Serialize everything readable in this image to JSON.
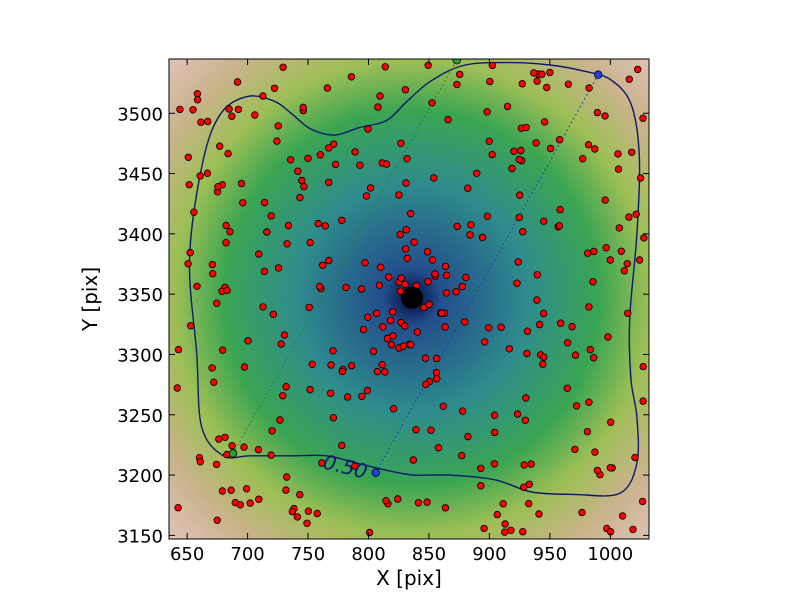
{
  "chart_data": {
    "type": "scatter",
    "title": "",
    "xlabel": "X [pix]",
    "ylabel": "Y [pix]",
    "xlim": [
      635,
      1032
    ],
    "ylim": [
      3147,
      3545
    ],
    "xticks": [
      650,
      700,
      750,
      800,
      850,
      900,
      950,
      1000
    ],
    "yticks": [
      3150,
      3200,
      3250,
      3300,
      3350,
      3400,
      3450,
      3500
    ],
    "xtick_labels": [
      "650",
      "700",
      "750",
      "800",
      "850",
      "900",
      "950",
      "1000"
    ],
    "ytick_labels": [
      "3150",
      "3200",
      "3250",
      "3300",
      "3350",
      "3400",
      "3450",
      "3500"
    ],
    "grid": false,
    "legend": "none",
    "background_map": {
      "kind": "density heatmap",
      "peak": [
        836,
        3347
      ],
      "colors": [
        "#00093f",
        "#234f8c",
        "#2e8c8c",
        "#3aa552",
        "#9dbf55",
        "#c9b38a",
        "#e6c8c8"
      ]
    },
    "center_marker": {
      "x": 836,
      "y": 3347,
      "color": "#000000"
    },
    "contour": {
      "level_label": "0.50",
      "color": "#0b1a6e",
      "points": [
        [
          680,
          3216
        ],
        [
          662,
          3240
        ],
        [
          658,
          3300
        ],
        [
          652,
          3380
        ],
        [
          663,
          3460
        ],
        [
          678,
          3500
        ],
        [
          700,
          3514
        ],
        [
          722,
          3510
        ],
        [
          736,
          3500
        ],
        [
          752,
          3487
        ],
        [
          772,
          3482
        ],
        [
          792,
          3488
        ],
        [
          815,
          3494
        ],
        [
          832,
          3510
        ],
        [
          852,
          3527
        ],
        [
          880,
          3540
        ],
        [
          918,
          3542
        ],
        [
          950,
          3540
        ],
        [
          978,
          3535
        ],
        [
          1000,
          3528
        ],
        [
          1017,
          3508
        ],
        [
          1024,
          3465
        ],
        [
          1022,
          3400
        ],
        [
          1016,
          3330
        ],
        [
          1017,
          3280
        ],
        [
          1022,
          3248
        ],
        [
          1022,
          3210
        ],
        [
          1008,
          3185
        ],
        [
          970,
          3184
        ],
        [
          935,
          3186
        ],
        [
          905,
          3196
        ],
        [
          868,
          3200
        ],
        [
          838,
          3200
        ],
        [
          815,
          3204
        ],
        [
          790,
          3210
        ],
        [
          765,
          3216
        ],
        [
          735,
          3216
        ],
        [
          702,
          3216
        ]
      ]
    },
    "axis_lines": [
      {
        "color": "#2e7d32",
        "from": [
          688,
          3218
        ],
        "to": [
          873,
          3544
        ]
      },
      {
        "color": "#1f3fbf",
        "from": [
          806,
          3202
        ],
        "to": [
          990,
          3532
        ]
      }
    ],
    "axis_endpoints": [
      {
        "x": 688,
        "y": 3218,
        "color": "#2ca02c"
      },
      {
        "x": 873,
        "y": 3544,
        "color": "#2ca02c"
      },
      {
        "x": 806,
        "y": 3202,
        "color": "#1f3fe0"
      },
      {
        "x": 990,
        "y": 3532,
        "color": "#1f3fe0"
      }
    ],
    "points_color": "#ff0000"
  }
}
